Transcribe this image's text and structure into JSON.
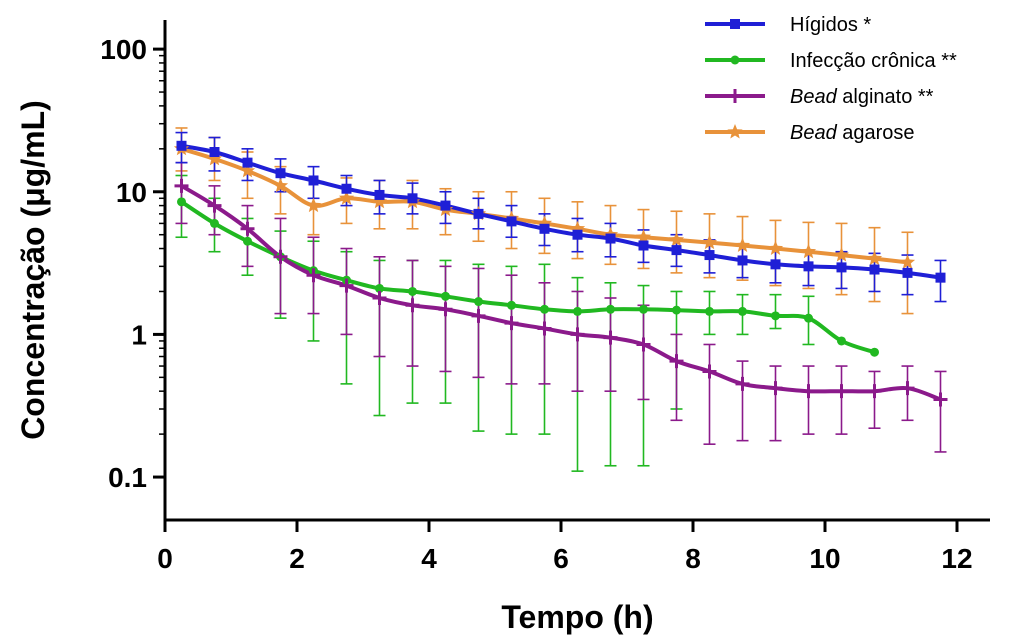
{
  "chart_data": {
    "type": "line",
    "title": "",
    "xlabel": "Tempo (h)",
    "ylabel": "Concentração  (μg/mL)",
    "xlim": [
      0,
      12.5
    ],
    "ylim": [
      0.05,
      160
    ],
    "yscale": "log",
    "xticks": [
      "0",
      "2",
      "4",
      "6",
      "8",
      "10",
      "12"
    ],
    "yticks": [
      "0.1",
      "1",
      "10",
      "100"
    ],
    "grid": false,
    "legend_position": "top-right",
    "series": [
      {
        "name": "Hígidos *",
        "name_parts": [
          {
            "t": "Hígidos *",
            "i": false
          }
        ],
        "color": "#1f1fd6",
        "marker": "square",
        "x": [
          0.25,
          0.75,
          1.25,
          1.75,
          2.25,
          2.75,
          3.25,
          3.75,
          4.25,
          4.75,
          5.25,
          5.75,
          6.25,
          6.75,
          7.25,
          7.75,
          8.25,
          8.75,
          9.25,
          9.75,
          10.25,
          10.75,
          11.25,
          11.75
        ],
        "y": [
          21,
          19,
          16,
          13.5,
          12,
          10.5,
          9.5,
          9,
          8,
          7,
          6.2,
          5.5,
          5,
          4.7,
          4.2,
          3.9,
          3.6,
          3.3,
          3.1,
          3.0,
          2.95,
          2.85,
          2.7,
          2.5
        ],
        "err_low": [
          16,
          14,
          12,
          10,
          9,
          8,
          7,
          7,
          6,
          5.5,
          4.8,
          4.2,
          3.8,
          3.5,
          3.2,
          3.0,
          2.7,
          2.5,
          2.3,
          2.2,
          2.1,
          2.0,
          1.9,
          1.7
        ],
        "err_high": [
          26,
          24,
          20,
          17,
          15,
          13,
          12,
          11.5,
          10,
          9,
          8,
          7,
          6.5,
          6,
          5.4,
          5,
          4.6,
          4.3,
          4,
          3.9,
          3.8,
          3.7,
          3.6,
          3.3
        ]
      },
      {
        "name": "Infecção crônica **",
        "name_parts": [
          {
            "t": "Infecção crônica **",
            "i": false
          }
        ],
        "color": "#21b821",
        "marker": "circle",
        "x": [
          0.25,
          0.75,
          1.25,
          1.75,
          2.25,
          2.75,
          3.25,
          3.75,
          4.25,
          4.75,
          5.25,
          5.75,
          6.25,
          6.75,
          7.25,
          7.75,
          8.25,
          8.75,
          9.25,
          9.75,
          10.25,
          10.75
        ],
        "y": [
          8.5,
          6,
          4.5,
          3.5,
          2.8,
          2.4,
          2.1,
          2.0,
          1.85,
          1.7,
          1.6,
          1.5,
          1.45,
          1.5,
          1.5,
          1.48,
          1.45,
          1.45,
          1.35,
          1.3,
          0.9,
          0.75
        ],
        "err_low": [
          4.8,
          3.8,
          2.6,
          1.3,
          0.9,
          0.45,
          0.27,
          0.33,
          0.33,
          0.21,
          0.2,
          0.2,
          0.11,
          0.12,
          0.12,
          0.3,
          1.0,
          1.0,
          1.1,
          0.85,
          null,
          null
        ],
        "err_high": [
          13,
          9,
          6.5,
          5.3,
          4.5,
          3.8,
          3.3,
          3.3,
          3.3,
          3.1,
          3.0,
          3.1,
          2.5,
          2.3,
          2.2,
          2.0,
          2.0,
          1.9,
          1.9,
          1.85,
          null,
          null
        ]
      },
      {
        "name": "Bead alginato **",
        "name_parts": [
          {
            "t": "Bead",
            "i": true
          },
          {
            "t": " alginato **",
            "i": false
          }
        ],
        "color": "#8b1a8b",
        "marker": "plus",
        "x": [
          0.25,
          0.75,
          1.25,
          1.75,
          2.25,
          2.75,
          3.25,
          3.75,
          4.25,
          4.75,
          5.25,
          5.75,
          6.25,
          6.75,
          7.25,
          7.75,
          8.25,
          8.75,
          9.25,
          9.75,
          10.25,
          10.75,
          11.25,
          11.75
        ],
        "y": [
          11,
          8,
          5.5,
          3.5,
          2.6,
          2.2,
          1.8,
          1.6,
          1.5,
          1.35,
          1.2,
          1.1,
          1.0,
          0.95,
          0.85,
          0.65,
          0.55,
          0.45,
          0.42,
          0.4,
          0.4,
          0.4,
          0.42,
          0.35
        ],
        "err_low": [
          6,
          5,
          3,
          1.4,
          1.4,
          1.0,
          0.7,
          0.6,
          0.55,
          0.5,
          0.45,
          0.45,
          0.4,
          0.4,
          0.35,
          0.25,
          0.17,
          0.18,
          0.18,
          0.2,
          0.2,
          0.22,
          0.25,
          0.15
        ],
        "err_high": [
          16,
          11,
          8,
          6.5,
          4.8,
          4.0,
          3.5,
          3.3,
          3.0,
          2.9,
          2.6,
          2.3,
          2.0,
          1.8,
          1.6,
          1.0,
          0.85,
          0.65,
          0.6,
          0.6,
          0.6,
          0.55,
          0.6,
          0.55
        ]
      },
      {
        "name": "Bead agarose",
        "name_parts": [
          {
            "t": "Bead",
            "i": true
          },
          {
            "t": " agarose",
            "i": false
          }
        ],
        "color": "#e8923a",
        "marker": "star",
        "x": [
          0.25,
          0.75,
          1.25,
          1.75,
          2.25,
          2.75,
          3.25,
          3.75,
          4.25,
          4.75,
          5.25,
          5.75,
          6.25,
          6.75,
          7.25,
          7.75,
          8.25,
          8.75,
          9.25,
          9.75,
          10.25,
          10.75,
          11.25
        ],
        "y": [
          20,
          17,
          14,
          11,
          8,
          9,
          8.5,
          8.5,
          7.5,
          7,
          6.5,
          6,
          5.5,
          5,
          4.8,
          4.6,
          4.4,
          4.2,
          4.0,
          3.8,
          3.6,
          3.4,
          3.2
        ],
        "err_low": [
          14,
          12,
          9,
          7,
          5,
          6,
          5.5,
          5.5,
          5,
          4.5,
          4,
          3.7,
          3.4,
          3.1,
          2.9,
          2.7,
          2.5,
          2.4,
          2.2,
          2.1,
          1.9,
          1.7,
          1.4
        ],
        "err_high": [
          28,
          24,
          19,
          15,
          12,
          12.5,
          12,
          12,
          10.5,
          10,
          10,
          9,
          8.5,
          8,
          7.5,
          7.3,
          7,
          6.7,
          6.3,
          6.1,
          6,
          5.6,
          5.2
        ]
      }
    ]
  }
}
